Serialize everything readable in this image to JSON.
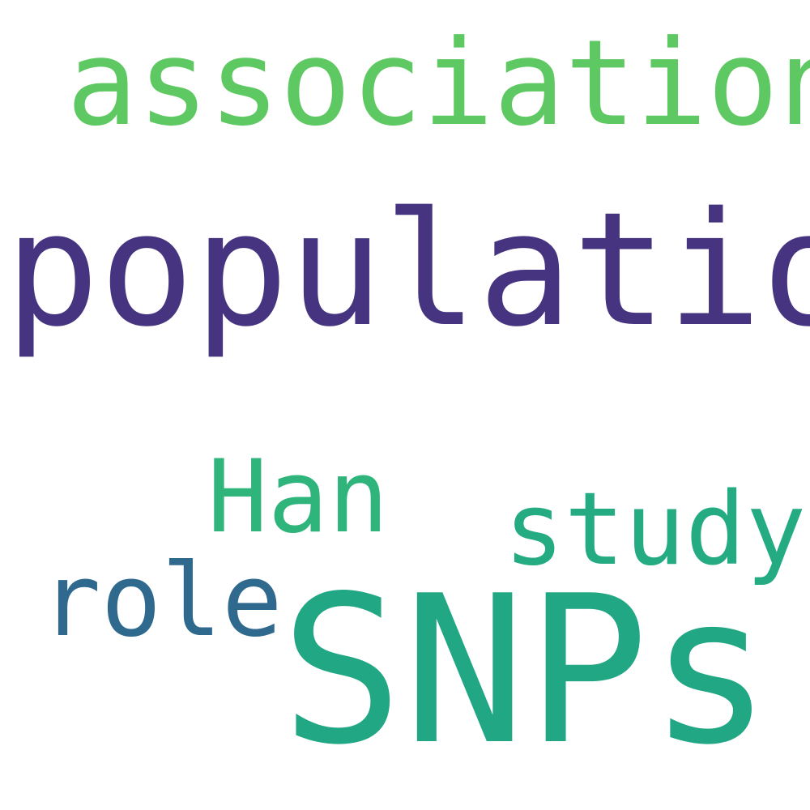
{
  "words": [
    {
      "text": "association",
      "color": "#5ec962"
    },
    {
      "text": "population",
      "color": "#463480"
    },
    {
      "text": "Han",
      "color": "#2fb47c"
    },
    {
      "text": "study",
      "color": "#25ab82"
    },
    {
      "text": "role",
      "color": "#30698e"
    },
    {
      "text": "SNPs",
      "color": "#22a785"
    }
  ]
}
